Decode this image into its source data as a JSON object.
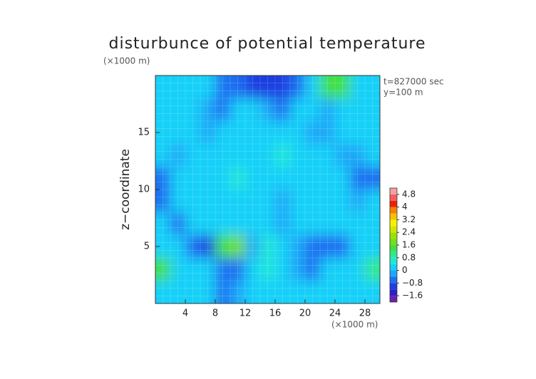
{
  "chart_data": {
    "type": "contour",
    "title": "disturbunce of potential temperature",
    "y_unit_label": "(×1000 m)",
    "x_unit_label": "(×1000 m)",
    "y_label": "z−coordinate",
    "annotations": [
      "t=827000 sec",
      "y=100 m"
    ],
    "xlim": [
      0,
      30
    ],
    "ylim": [
      0,
      20
    ],
    "xticks": [
      4,
      8,
      12,
      16,
      20,
      24,
      28
    ],
    "yticks": [
      5,
      10,
      15
    ],
    "grid": true,
    "x": [
      1,
      3,
      5,
      7,
      9,
      11,
      13,
      15,
      17,
      19,
      21,
      23,
      25,
      27,
      29
    ],
    "y": [
      19,
      17,
      15,
      13,
      11,
      9,
      7,
      5,
      3,
      1
    ],
    "z": [
      [
        0,
        0.3,
        0,
        0,
        -0.5,
        -0.8,
        -1,
        -1.2,
        -1,
        -0.5,
        0,
        1.2,
        1.5,
        0.2,
        0
      ],
      [
        0.2,
        0.3,
        0,
        -0.3,
        -0.5,
        0,
        0.2,
        -0.3,
        -0.5,
        0,
        0.3,
        -0.3,
        0,
        0,
        0
      ],
      [
        0,
        0,
        0,
        -0.4,
        0,
        0.3,
        0,
        0,
        0.2,
        0,
        -0.3,
        -0.4,
        0,
        0,
        0
      ],
      [
        0,
        -0.2,
        0,
        0.3,
        0,
        0.3,
        0,
        0,
        0.4,
        0,
        0,
        0,
        -0.2,
        -0.3,
        0
      ],
      [
        -0.6,
        0,
        0.3,
        0,
        0,
        0.4,
        0.2,
        0,
        0,
        0,
        0.3,
        0,
        0,
        -0.6,
        -0.5
      ],
      [
        -0.5,
        0,
        0.3,
        0,
        0.3,
        0,
        0.2,
        0,
        -0.2,
        0,
        0.3,
        0,
        0,
        -0.3,
        0
      ],
      [
        0,
        -0.8,
        0,
        0.3,
        0,
        0.2,
        0,
        0,
        -0.4,
        0,
        0,
        0,
        0.2,
        0,
        0
      ],
      [
        0,
        0,
        -0.6,
        -1.2,
        1.2,
        1.6,
        -0.3,
        0.4,
        0,
        -0.4,
        -0.6,
        -0.8,
        -0.6,
        0,
        0
      ],
      [
        1.2,
        0,
        0,
        0,
        -0.8,
        -0.6,
        0,
        0.5,
        0,
        -0.3,
        -0.5,
        0.3,
        0,
        0,
        1.0
      ],
      [
        0,
        0,
        0,
        0,
        -0.8,
        -0.4,
        0,
        0,
        0.3,
        0,
        0,
        0,
        0,
        0,
        0
      ]
    ],
    "colorbar": {
      "levels": [
        -2,
        -1.6,
        -1.2,
        -0.8,
        -0.4,
        0,
        0.4,
        0.8,
        1.2,
        1.6,
        2.0,
        2.4,
        2.8,
        3.2,
        3.6,
        4.0,
        4.4,
        4.8,
        5.2
      ],
      "colors": [
        "#6a1fb0",
        "#2a1fc8",
        "#1e3ee0",
        "#1e70f0",
        "#1ea8f8",
        "#14d0f8",
        "#20e8d8",
        "#30e890",
        "#40e040",
        "#70e020",
        "#a0e000",
        "#d0e800",
        "#f8f000",
        "#f8c000",
        "#f88000",
        "#f02000",
        "#f06060",
        "#f8a0a0"
      ],
      "ticks": [
        {
          "value": -1.6,
          "label": "−1.6"
        },
        {
          "value": -0.8,
          "label": "−0.8"
        },
        0,
        0.8,
        1.6,
        2.4,
        3.2,
        4,
        4.8
      ]
    }
  }
}
